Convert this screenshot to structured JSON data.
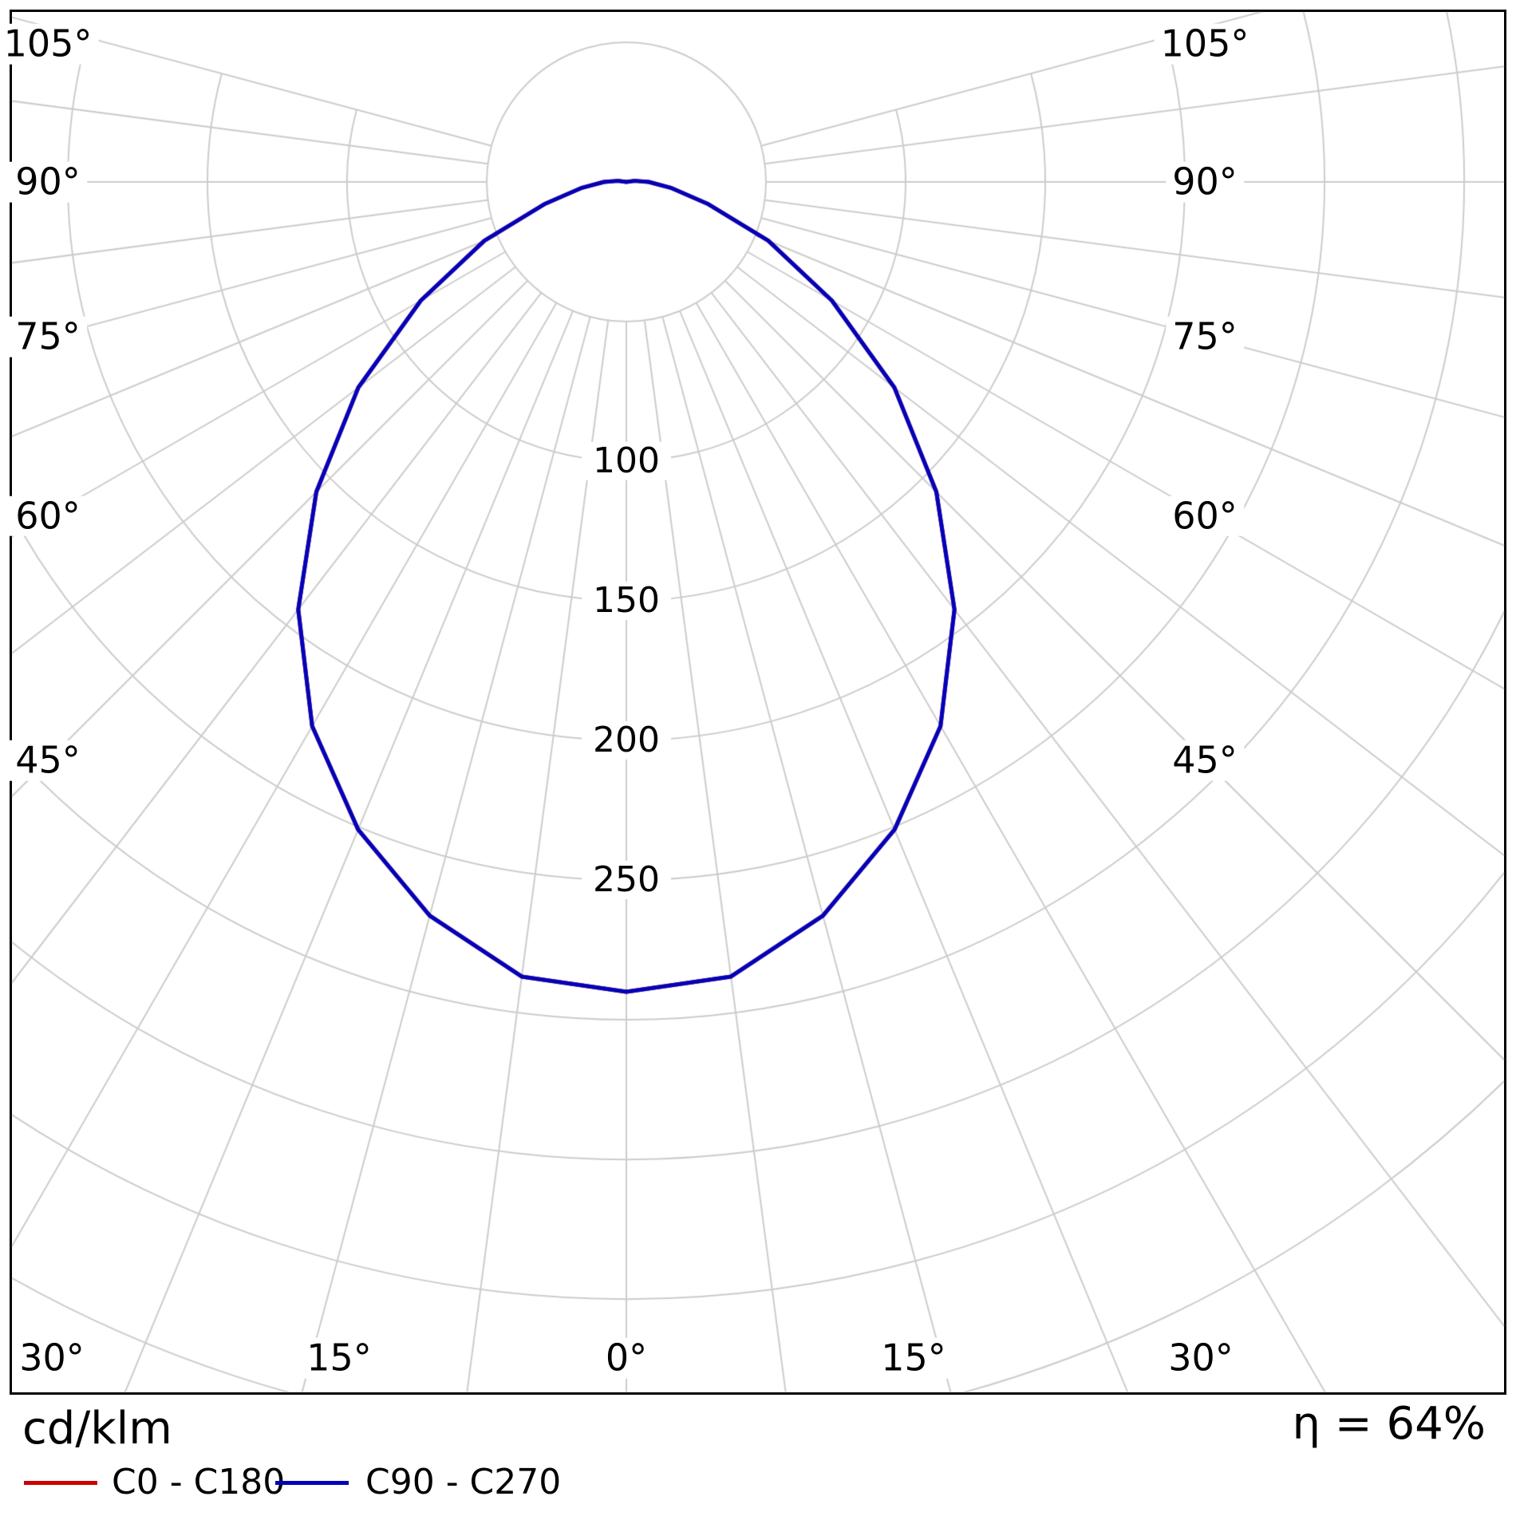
{
  "chart_data": {
    "type": "line",
    "subtype": "polar-photometric",
    "units": "cd/klm",
    "efficiency": "η = 64%",
    "zero_direction": "down",
    "angle_range_deg": [
      -105,
      105
    ],
    "angle_grid_step_deg": 7.5,
    "angle_label_step_deg": 15,
    "radial_step": 50,
    "radial_range_shown": [
      0,
      450
    ],
    "grid_color": "#cccccc",
    "angle_ticks": [
      {
        "deg": 0,
        "label": "0°"
      },
      {
        "deg": 15,
        "label": "15°"
      },
      {
        "deg": 30,
        "label": "30°"
      },
      {
        "deg": 45,
        "label": "45°"
      },
      {
        "deg": 60,
        "label": "60°"
      },
      {
        "deg": 75,
        "label": "75°"
      },
      {
        "deg": 90,
        "label": "90°"
      },
      {
        "deg": 105,
        "label": "105°"
      }
    ],
    "radial_ticks": [
      {
        "value": 100,
        "label": "100"
      },
      {
        "value": 150,
        "label": "150"
      },
      {
        "value": 200,
        "label": "200"
      },
      {
        "value": 250,
        "label": "250"
      }
    ],
    "series": [
      {
        "name": "C0 - C180",
        "color": "#cc0000",
        "gamma_deg": [
          0,
          7.5,
          15,
          22.5,
          30,
          37.5,
          45,
          52.5,
          60,
          67.5,
          75,
          82.5,
          90,
          97.5,
          105
        ],
        "values": [
          290,
          287,
          272,
          251,
          225,
          193,
          157,
          121,
          85,
          55,
          30,
          16,
          8,
          3,
          0
        ]
      },
      {
        "name": "C90 - C270",
        "color": "#0000bb",
        "gamma_deg": [
          0,
          7.5,
          15,
          22.5,
          30,
          37.5,
          45,
          52.5,
          60,
          67.5,
          75,
          82.5,
          90,
          97.5,
          105
        ],
        "values": [
          290,
          287,
          272,
          251,
          225,
          193,
          157,
          121,
          85,
          55,
          30,
          16,
          8,
          3,
          0
        ]
      }
    ]
  }
}
